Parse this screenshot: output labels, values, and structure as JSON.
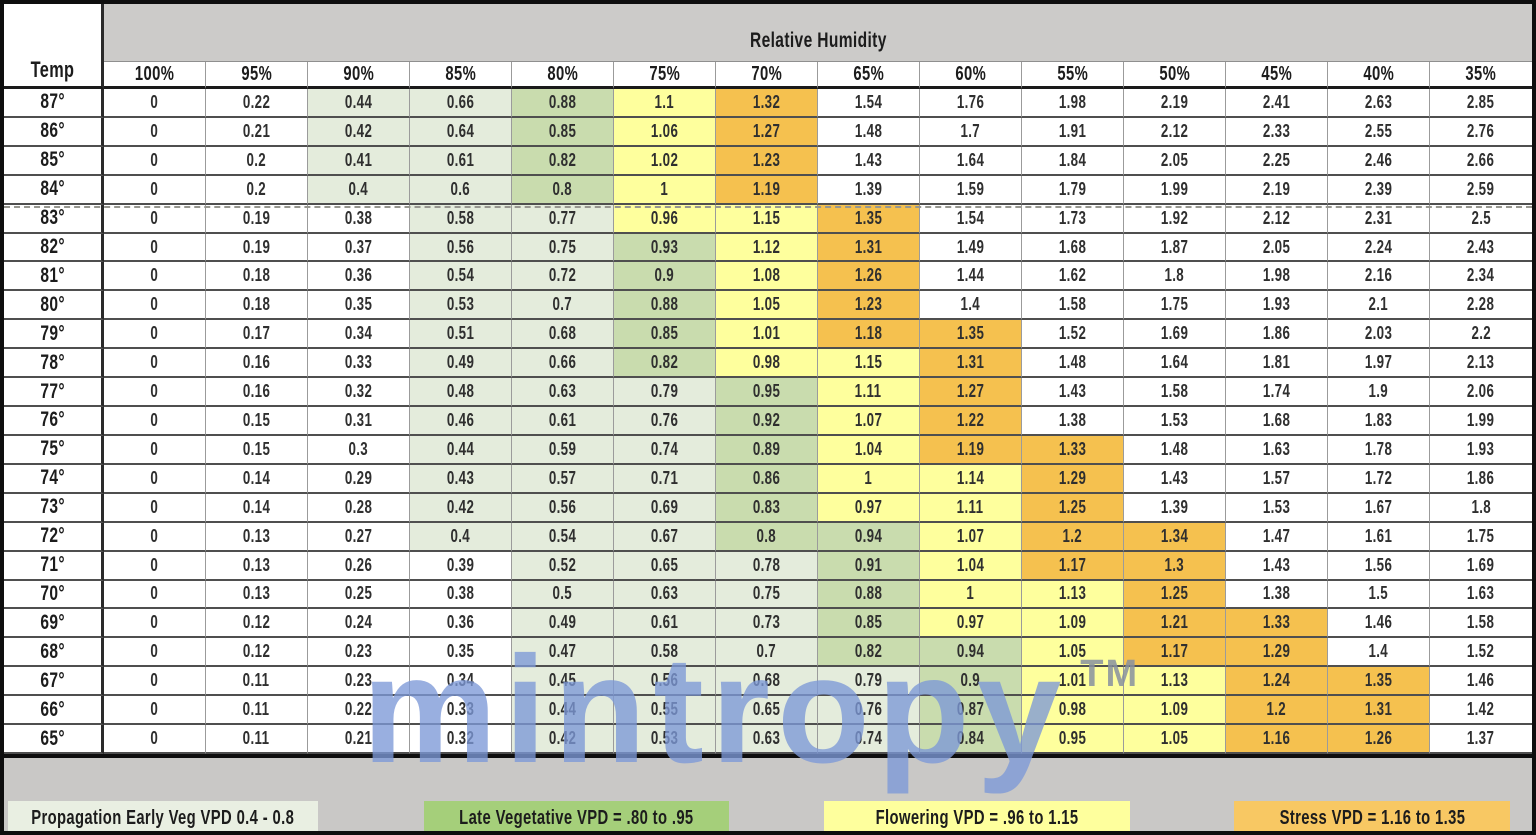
{
  "header": {
    "group_label": "Relative Humidity",
    "temp_label": "Temp",
    "humidity_columns": [
      "100%",
      "95%",
      "90%",
      "85%",
      "80%",
      "75%",
      "70%",
      "65%",
      "60%",
      "55%",
      "50%",
      "45%",
      "40%",
      "35%"
    ]
  },
  "chart_data": {
    "type": "table",
    "title": "Relative Humidity",
    "row_header": "Temp",
    "columns": [
      "100%",
      "95%",
      "90%",
      "85%",
      "80%",
      "75%",
      "70%",
      "65%",
      "60%",
      "55%",
      "50%",
      "45%",
      "40%",
      "35%"
    ],
    "rows": [
      {
        "temp": "87°",
        "values": [
          "0",
          "0.22",
          "0.44",
          "0.66",
          "0.88",
          "1.1",
          "1.32",
          "1.54",
          "1.76",
          "1.98",
          "2.19",
          "2.41",
          "2.63",
          "2.85"
        ]
      },
      {
        "temp": "86°",
        "values": [
          "0",
          "0.21",
          "0.42",
          "0.64",
          "0.85",
          "1.06",
          "1.27",
          "1.48",
          "1.7",
          "1.91",
          "2.12",
          "2.33",
          "2.55",
          "2.76"
        ]
      },
      {
        "temp": "85°",
        "values": [
          "0",
          "0.2",
          "0.41",
          "0.61",
          "0.82",
          "1.02",
          "1.23",
          "1.43",
          "1.64",
          "1.84",
          "2.05",
          "2.25",
          "2.46",
          "2.66"
        ]
      },
      {
        "temp": "84°",
        "values": [
          "0",
          "0.2",
          "0.4",
          "0.6",
          "0.8",
          "1",
          "1.19",
          "1.39",
          "1.59",
          "1.79",
          "1.99",
          "2.19",
          "2.39",
          "2.59"
        ]
      },
      {
        "temp": "83°",
        "values": [
          "0",
          "0.19",
          "0.38",
          "0.58",
          "0.77",
          "0.96",
          "1.15",
          "1.35",
          "1.54",
          "1.73",
          "1.92",
          "2.12",
          "2.31",
          "2.5"
        ]
      },
      {
        "temp": "82°",
        "values": [
          "0",
          "0.19",
          "0.37",
          "0.56",
          "0.75",
          "0.93",
          "1.12",
          "1.31",
          "1.49",
          "1.68",
          "1.87",
          "2.05",
          "2.24",
          "2.43"
        ]
      },
      {
        "temp": "81°",
        "values": [
          "0",
          "0.18",
          "0.36",
          "0.54",
          "0.72",
          "0.9",
          "1.08",
          "1.26",
          "1.44",
          "1.62",
          "1.8",
          "1.98",
          "2.16",
          "2.34"
        ]
      },
      {
        "temp": "80°",
        "values": [
          "0",
          "0.18",
          "0.35",
          "0.53",
          "0.7",
          "0.88",
          "1.05",
          "1.23",
          "1.4",
          "1.58",
          "1.75",
          "1.93",
          "2.1",
          "2.28"
        ]
      },
      {
        "temp": "79°",
        "values": [
          "0",
          "0.17",
          "0.34",
          "0.51",
          "0.68",
          "0.85",
          "1.01",
          "1.18",
          "1.35",
          "1.52",
          "1.69",
          "1.86",
          "2.03",
          "2.2"
        ]
      },
      {
        "temp": "78°",
        "values": [
          "0",
          "0.16",
          "0.33",
          "0.49",
          "0.66",
          "0.82",
          "0.98",
          "1.15",
          "1.31",
          "1.48",
          "1.64",
          "1.81",
          "1.97",
          "2.13"
        ]
      },
      {
        "temp": "77°",
        "values": [
          "0",
          "0.16",
          "0.32",
          "0.48",
          "0.63",
          "0.79",
          "0.95",
          "1.11",
          "1.27",
          "1.43",
          "1.58",
          "1.74",
          "1.9",
          "2.06"
        ]
      },
      {
        "temp": "76°",
        "values": [
          "0",
          "0.15",
          "0.31",
          "0.46",
          "0.61",
          "0.76",
          "0.92",
          "1.07",
          "1.22",
          "1.38",
          "1.53",
          "1.68",
          "1.83",
          "1.99"
        ]
      },
      {
        "temp": "75°",
        "values": [
          "0",
          "0.15",
          "0.3",
          "0.44",
          "0.59",
          "0.74",
          "0.89",
          "1.04",
          "1.19",
          "1.33",
          "1.48",
          "1.63",
          "1.78",
          "1.93"
        ]
      },
      {
        "temp": "74°",
        "values": [
          "0",
          "0.14",
          "0.29",
          "0.43",
          "0.57",
          "0.71",
          "0.86",
          "1",
          "1.14",
          "1.29",
          "1.43",
          "1.57",
          "1.72",
          "1.86"
        ]
      },
      {
        "temp": "73°",
        "values": [
          "0",
          "0.14",
          "0.28",
          "0.42",
          "0.56",
          "0.69",
          "0.83",
          "0.97",
          "1.11",
          "1.25",
          "1.39",
          "1.53",
          "1.67",
          "1.8"
        ]
      },
      {
        "temp": "72°",
        "values": [
          "0",
          "0.13",
          "0.27",
          "0.4",
          "0.54",
          "0.67",
          "0.8",
          "0.94",
          "1.07",
          "1.2",
          "1.34",
          "1.47",
          "1.61",
          "1.75"
        ]
      },
      {
        "temp": "71°",
        "values": [
          "0",
          "0.13",
          "0.26",
          "0.39",
          "0.52",
          "0.65",
          "0.78",
          "0.91",
          "1.04",
          "1.17",
          "1.3",
          "1.43",
          "1.56",
          "1.69"
        ]
      },
      {
        "temp": "70°",
        "values": [
          "0",
          "0.13",
          "0.25",
          "0.38",
          "0.5",
          "0.63",
          "0.75",
          "0.88",
          "1",
          "1.13",
          "1.25",
          "1.38",
          "1.5",
          "1.63"
        ]
      },
      {
        "temp": "69°",
        "values": [
          "0",
          "0.12",
          "0.24",
          "0.36",
          "0.49",
          "0.61",
          "0.73",
          "0.85",
          "0.97",
          "1.09",
          "1.21",
          "1.33",
          "1.46",
          "1.58"
        ]
      },
      {
        "temp": "68°",
        "values": [
          "0",
          "0.12",
          "0.23",
          "0.35",
          "0.47",
          "0.58",
          "0.7",
          "0.82",
          "0.94",
          "1.05",
          "1.17",
          "1.29",
          "1.4",
          "1.52"
        ]
      },
      {
        "temp": "67°",
        "values": [
          "0",
          "0.11",
          "0.23",
          "0.34",
          "0.45",
          "0.56",
          "0.68",
          "0.79",
          "0.9",
          "1.01",
          "1.13",
          "1.24",
          "1.35",
          "1.46"
        ]
      },
      {
        "temp": "66°",
        "values": [
          "0",
          "0.11",
          "0.22",
          "0.33",
          "0.44",
          "0.55",
          "0.65",
          "0.76",
          "0.87",
          "0.98",
          "1.09",
          "1.2",
          "1.31",
          "1.42"
        ]
      },
      {
        "temp": "65°",
        "values": [
          "0",
          "0.11",
          "0.21",
          "0.32",
          "0.42",
          "0.53",
          "0.63",
          "0.74",
          "0.84",
          "0.95",
          "1.05",
          "1.16",
          "1.26",
          "1.37"
        ]
      }
    ]
  },
  "color_coding": {
    "white": "#ffffff",
    "light_green": "#e4ecdc",
    "dark_green": "#c9dcae",
    "yellow": "#feff9d",
    "orange": "#f5c14f",
    "rules": [
      {
        "class": "light_green",
        "min": 0.4,
        "max": 0.79
      },
      {
        "class": "dark_green",
        "min": 0.8,
        "max": 0.95
      },
      {
        "class": "yellow",
        "min": 0.96,
        "max": 1.15
      },
      {
        "class": "orange",
        "min": 1.16,
        "max": 1.35
      }
    ],
    "exceptions": [
      {
        "temp": "65°",
        "column": "55%",
        "class": "yellow"
      }
    ]
  },
  "legend": {
    "items": [
      {
        "label": "Propagation Early Veg VPD 0.4 - 0.8",
        "color": "#e9efe2"
      },
      {
        "label": "Late Vegetative VPD = .80 to .95",
        "color": "#a5cf7a"
      },
      {
        "label": "Flowering VPD = .96 to 1.15",
        "color": "#feff9d"
      },
      {
        "label": "Stress VPD = 1.16 to 1.35",
        "color": "#f8c863"
      }
    ]
  },
  "watermark": {
    "text": "mintropy",
    "tm": "TM",
    "color": "#7c98d7"
  }
}
